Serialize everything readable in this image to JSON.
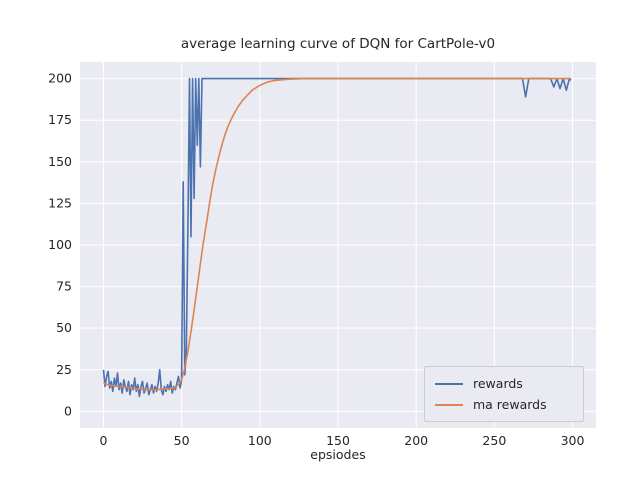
{
  "figure": {
    "title": "average learning curve of DQN for CartPole-v0",
    "xlabel": "epsiodes",
    "plot_background": "#eaeaf2",
    "grid_color": "#ffffff",
    "tick_color": "#262626"
  },
  "legend": {
    "entries": [
      {
        "label": "rewards",
        "color": "#4c72b0"
      },
      {
        "label": "ma rewards",
        "color": "#dd8452"
      }
    ]
  },
  "chart_data": {
    "type": "line",
    "title": "average learning curve of DQN for CartPole-v0",
    "xlabel": "epsiodes",
    "ylabel": "",
    "xlim": [
      -15,
      315
    ],
    "ylim": [
      -10,
      210
    ],
    "xticks": [
      0,
      50,
      100,
      150,
      200,
      250,
      300
    ],
    "yticks": [
      0,
      25,
      50,
      75,
      100,
      125,
      150,
      175,
      200
    ],
    "grid": true,
    "legend_position": "lower right",
    "series": [
      {
        "name": "rewards",
        "color": "#4c72b0",
        "points": [
          [
            0,
            25
          ],
          [
            1,
            15
          ],
          [
            2,
            21
          ],
          [
            3,
            24
          ],
          [
            4,
            14
          ],
          [
            5,
            18
          ],
          [
            6,
            12
          ],
          [
            7,
            20
          ],
          [
            8,
            15
          ],
          [
            9,
            23
          ],
          [
            10,
            13
          ],
          [
            11,
            17
          ],
          [
            12,
            11
          ],
          [
            13,
            19
          ],
          [
            14,
            15
          ],
          [
            15,
            12
          ],
          [
            16,
            18
          ],
          [
            17,
            10
          ],
          [
            18,
            16
          ],
          [
            19,
            13
          ],
          [
            20,
            20
          ],
          [
            21,
            12
          ],
          [
            22,
            16
          ],
          [
            23,
            9
          ],
          [
            24,
            15
          ],
          [
            25,
            18
          ],
          [
            26,
            11
          ],
          [
            27,
            14
          ],
          [
            28,
            17
          ],
          [
            29,
            10
          ],
          [
            30,
            13
          ],
          [
            31,
            16
          ],
          [
            32,
            11
          ],
          [
            33,
            15
          ],
          [
            34,
            12
          ],
          [
            35,
            17
          ],
          [
            36,
            25
          ],
          [
            37,
            13
          ],
          [
            38,
            10
          ],
          [
            39,
            15
          ],
          [
            40,
            12
          ],
          [
            41,
            16
          ],
          [
            42,
            13
          ],
          [
            43,
            18
          ],
          [
            44,
            11
          ],
          [
            45,
            15
          ],
          [
            46,
            13
          ],
          [
            47,
            17
          ],
          [
            48,
            21
          ],
          [
            49,
            14
          ],
          [
            50,
            19
          ],
          [
            51,
            138
          ],
          [
            52,
            22
          ],
          [
            53,
            35
          ],
          [
            54,
            110
          ],
          [
            55,
            200
          ],
          [
            56,
            105
          ],
          [
            57,
            200
          ],
          [
            58,
            128
          ],
          [
            59,
            200
          ],
          [
            60,
            160
          ],
          [
            61,
            200
          ],
          [
            62,
            147
          ],
          [
            63,
            200
          ],
          [
            70,
            200
          ],
          [
            100,
            200
          ],
          [
            150,
            200
          ],
          [
            200,
            200
          ],
          [
            250,
            200
          ],
          [
            268,
            200
          ],
          [
            270,
            189
          ],
          [
            272,
            200
          ],
          [
            286,
            200
          ],
          [
            288,
            195
          ],
          [
            290,
            200
          ],
          [
            292,
            194
          ],
          [
            294,
            200
          ],
          [
            296,
            193
          ],
          [
            298,
            200
          ],
          [
            299,
            199
          ]
        ]
      },
      {
        "name": "ma rewards",
        "color": "#dd8452",
        "points": [
          [
            0,
            17
          ],
          [
            3,
            16
          ],
          [
            6,
            15.5
          ],
          [
            10,
            15
          ],
          [
            14,
            14.5
          ],
          [
            18,
            14
          ],
          [
            22,
            13.5
          ],
          [
            26,
            13
          ],
          [
            30,
            13
          ],
          [
            34,
            13
          ],
          [
            38,
            13.5
          ],
          [
            42,
            13.5
          ],
          [
            45,
            14
          ],
          [
            48,
            16
          ],
          [
            50,
            19
          ],
          [
            52,
            26
          ],
          [
            54,
            36
          ],
          [
            56,
            48
          ],
          [
            58,
            61
          ],
          [
            60,
            75
          ],
          [
            62,
            89
          ],
          [
            64,
            102
          ],
          [
            66,
            114
          ],
          [
            68,
            126
          ],
          [
            70,
            137
          ],
          [
            72,
            146
          ],
          [
            74,
            154
          ],
          [
            76,
            161
          ],
          [
            78,
            167
          ],
          [
            80,
            172
          ],
          [
            83,
            178
          ],
          [
            86,
            183
          ],
          [
            89,
            187
          ],
          [
            92,
            190
          ],
          [
            95,
            193
          ],
          [
            100,
            196
          ],
          [
            105,
            198
          ],
          [
            110,
            199
          ],
          [
            120,
            199.7
          ],
          [
            130,
            200
          ],
          [
            150,
            200
          ],
          [
            200,
            200
          ],
          [
            250,
            200
          ],
          [
            299,
            200
          ]
        ]
      }
    ]
  }
}
